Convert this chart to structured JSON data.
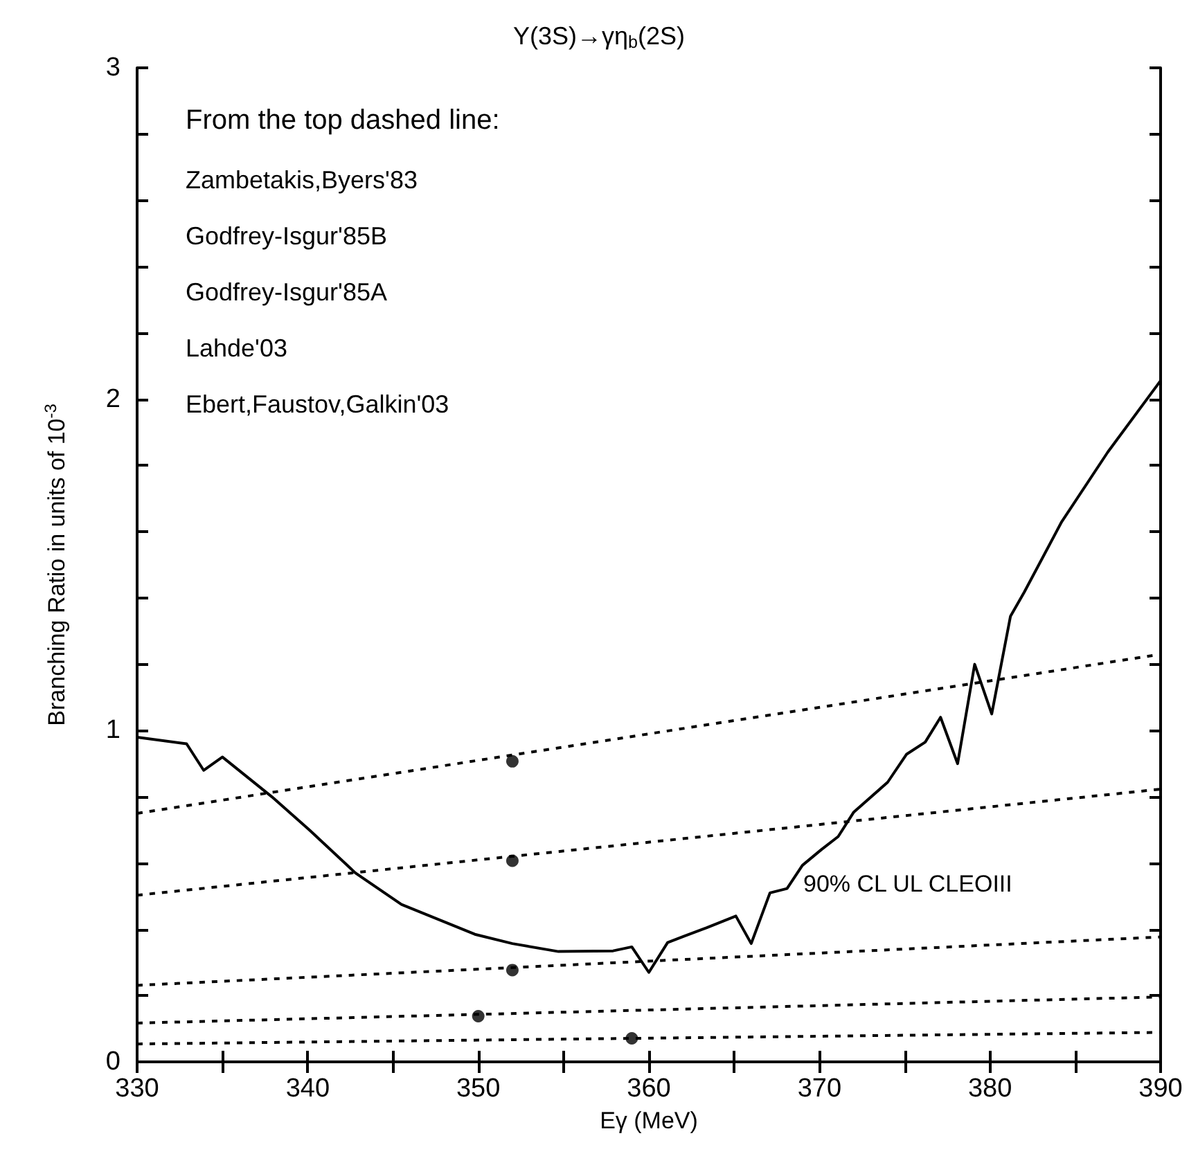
{
  "chart_data": {
    "type": "line",
    "title": "Υ(3S)→γη$_{b}$(2S)",
    "xlabel": "Eγ (MeV)",
    "ylabel": "Branching Ratio in units of 10$^{-3}$",
    "xlim": [
      330,
      390
    ],
    "ylim": [
      0,
      3
    ],
    "xticks": [
      330,
      {
        "value": 335,
        "label": null
      },
      340,
      {
        "value": 345,
        "label": null
      },
      350,
      {
        "value": 355,
        "label": null
      },
      360,
      {
        "value": 365,
        "label": null
      },
      370,
      {
        "value": 375,
        "label": null
      },
      380,
      {
        "value": 385,
        "label": null
      },
      390
    ],
    "yticks": [
      0,
      {
        "value": 0.2,
        "label": null
      },
      {
        "value": 0.4,
        "label": null
      },
      {
        "value": 0.6,
        "label": null
      },
      {
        "value": 0.8,
        "label": null
      },
      1,
      {
        "value": 1.2,
        "label": null
      },
      {
        "value": 1.4,
        "label": null
      },
      {
        "value": 1.6,
        "label": null
      },
      {
        "value": 1.8,
        "label": null
      },
      2,
      {
        "value": 2.2,
        "label": null
      },
      {
        "value": 2.4,
        "label": null
      },
      {
        "value": 2.6,
        "label": null
      },
      {
        "value": 2.8,
        "label": null
      },
      3
    ],
    "grid": false,
    "series": [
      {
        "color": "#000000",
        "line_style": "solid",
        "marker": "none",
        "x": [
          330,
          332.9,
          333.9,
          335,
          337.9,
          340.1,
          342.8,
          345.5,
          349.8,
          352,
          354.7,
          357.9,
          359,
          360,
          361.1,
          362.1,
          363.4,
          365.1,
          366,
          367.1,
          368.1,
          369,
          370.1,
          371.1,
          372,
          374,
          375.1,
          376.2,
          377.1,
          378.1,
          379.1,
          380.1,
          381.2,
          382,
          384.2,
          386.9,
          390
        ],
        "values": [
          0.98,
          0.96,
          0.88,
          0.92,
          0.8,
          0.7,
          0.57,
          0.475,
          0.385,
          0.357,
          0.333,
          0.335,
          0.347,
          0.27,
          0.36,
          0.38,
          0.405,
          0.44,
          0.357,
          0.51,
          0.523,
          0.593,
          0.64,
          0.68,
          0.753,
          0.844,
          0.928,
          0.965,
          1.04,
          0.9,
          1.2,
          1.05,
          1.345,
          1.417,
          1.63,
          1.84,
          2.056
        ]
      },
      {
        "type": "line",
        "color": "#000000",
        "line_style": "dashed",
        "marker": "none",
        "x": [
          330,
          390
        ],
        "values": [
          0.75,
          1.23
        ]
      },
      {
        "type": "line",
        "color": "#000000",
        "line_style": "dashed",
        "marker": "none",
        "x": [
          330,
          390
        ],
        "values": [
          0.503,
          0.823
        ]
      },
      {
        "type": "line",
        "color": "#000000",
        "line_style": "dashed",
        "marker": "none",
        "x": [
          330,
          390
        ],
        "values": [
          0.231,
          0.377
        ]
      },
      {
        "type": "line",
        "color": "#000000",
        "line_style": "dashed",
        "marker": "none",
        "x": [
          330,
          390
        ],
        "values": [
          0.117,
          0.196
        ]
      },
      {
        "type": "line",
        "color": "#000000",
        "line_style": "dashed",
        "marker": "none",
        "x": [
          330,
          390
        ],
        "values": [
          0.054,
          0.089
        ]
      },
      {
        "type": "scatter",
        "color": "#000000",
        "marker": "circle",
        "x": [
          352,
          352,
          352,
          350,
          359
        ],
        "values": [
          0.907,
          0.607,
          0.277,
          0.138,
          0.071
        ]
      }
    ],
    "annotations": [
      "From the top dashed line:",
      "Zambetakis,Byers'83",
      "Godfrey-Isgur'85B",
      "Godfrey-Isgur'85A",
      "Lahde'03",
      "Ebert,Faustov,Galkin'03",
      "90% CL UL CLEOIII"
    ]
  }
}
